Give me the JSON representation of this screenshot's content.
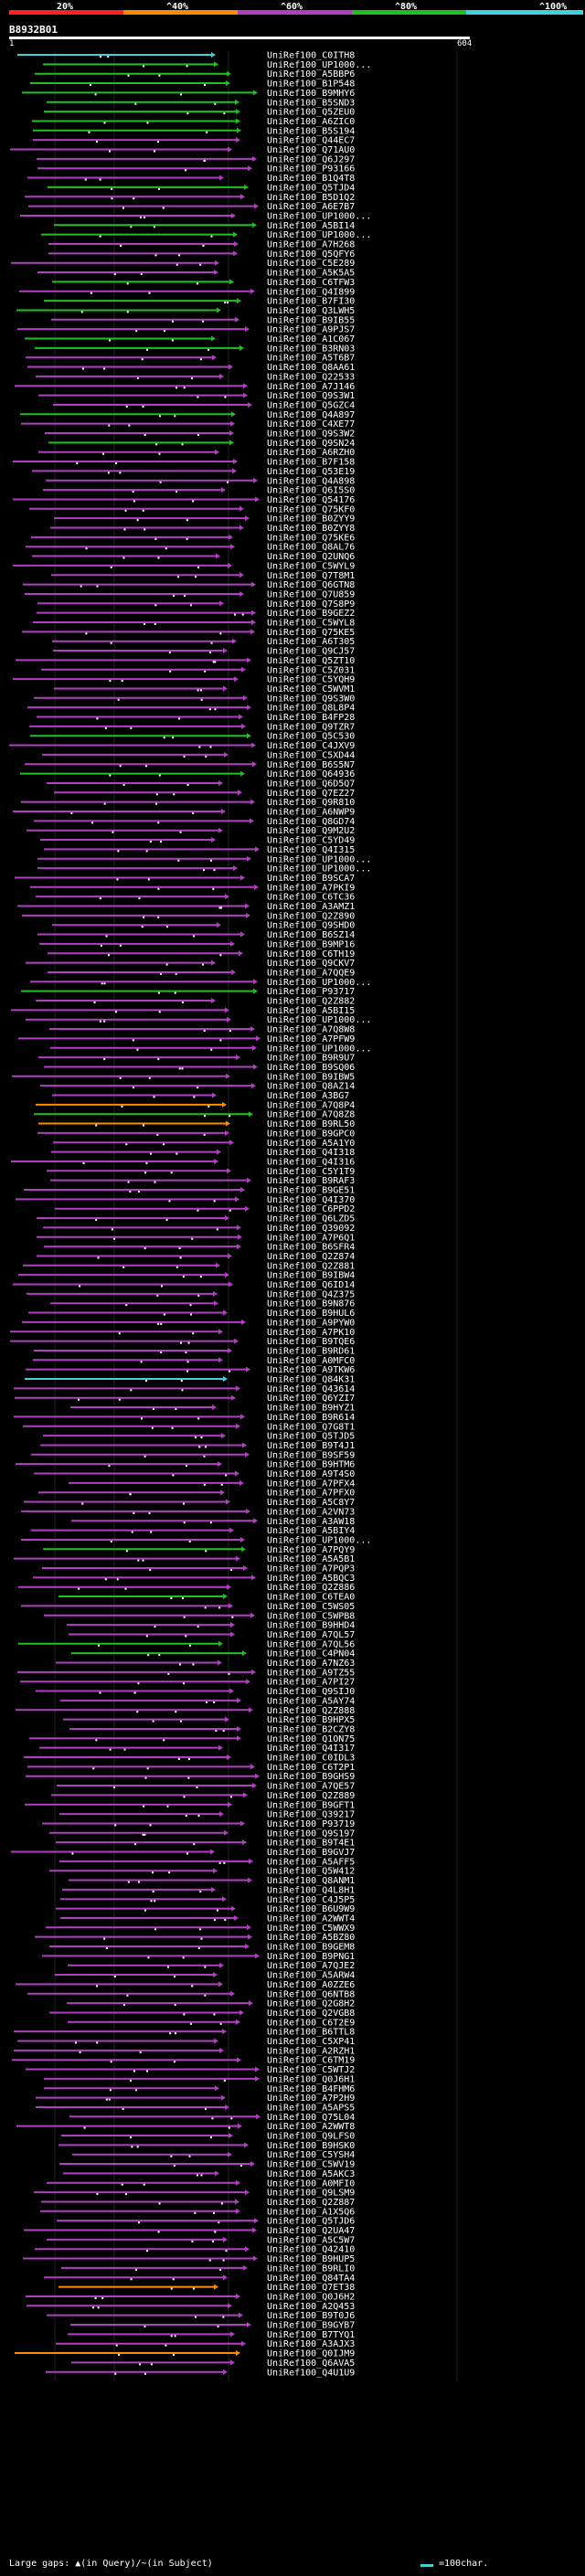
{
  "legend": {
    "segments": [
      {
        "label": "20%",
        "color": "#ff2020"
      },
      {
        "label": "^40%",
        "color": "#ff8c00"
      },
      {
        "label": "^60%",
        "color": "#b040c0"
      },
      {
        "label": "^80%",
        "color": "#20c020"
      },
      {
        "label": "^100%",
        "color": "#40d0e0"
      }
    ]
  },
  "query": {
    "id": "B8932B01",
    "start": "1",
    "end": "604"
  },
  "hits": [
    {
      "label": "UniRef100_C0ITH8",
      "color": "#40d0e0"
    },
    {
      "label": "UniRef100_UP1000...",
      "color": "#20c020"
    },
    {
      "label": "UniRef100_A5BBP6",
      "color": "#20c020"
    },
    {
      "label": "UniRef100_B1P548",
      "color": "#20c020"
    },
    {
      "label": "UniRef100_B9MHY6",
      "color": "#20c020"
    },
    {
      "label": "UniRef100_B5SND3",
      "color": "#20c020"
    },
    {
      "label": "UniRef100_Q5ZEU0",
      "color": "#20c020"
    },
    {
      "label": "UniRef100_A6ZIC0",
      "color": "#20c020"
    },
    {
      "label": "UniRef100_B5S194",
      "color": "#20c020"
    },
    {
      "label": "UniRef100_Q44EC7",
      "color": "#b040c0"
    },
    {
      "label": "UniRef100_Q71AU0",
      "color": "#b040c0"
    },
    {
      "label": "UniRef100_Q6J297",
      "color": "#b040c0"
    },
    {
      "label": "UniRef100_P93166",
      "color": "#b040c0"
    },
    {
      "label": "UniRef100_B1Q4T8",
      "color": "#b040c0"
    },
    {
      "label": "UniRef100_Q5TJD4",
      "color": "#20c020"
    },
    {
      "label": "UniRef100_B5D1Q2",
      "color": "#b040c0"
    },
    {
      "label": "UniRef100_A6E7B7",
      "color": "#b040c0"
    },
    {
      "label": "UniRef100_UP1000...",
      "color": "#b040c0"
    },
    {
      "label": "UniRef100_A5BI14",
      "color": "#20c020"
    },
    {
      "label": "UniRef100_UP1000...",
      "color": "#20c020"
    },
    {
      "label": "UniRef100_A7H268",
      "color": "#b040c0"
    },
    {
      "label": "UniRef100_Q5QFY6",
      "color": "#b040c0"
    },
    {
      "label": "UniRef100_C5E289",
      "color": "#b040c0"
    },
    {
      "label": "UniRef100_A5K5A5",
      "color": "#b040c0"
    },
    {
      "label": "UniRef100_C6TFW3",
      "color": "#20c020"
    },
    {
      "label": "UniRef100_Q4I899",
      "color": "#b040c0"
    },
    {
      "label": "UniRef100_B7FI30",
      "color": "#20c020"
    },
    {
      "label": "UniRef100_Q3LWH5",
      "color": "#20c020"
    },
    {
      "label": "UniRef100_B9IB55",
      "color": "#b040c0"
    },
    {
      "label": "UniRef100_A9PJS7",
      "color": "#b040c0"
    },
    {
      "label": "UniRef100_A1C067",
      "color": "#20c020"
    },
    {
      "label": "UniRef100_B3RN03",
      "color": "#20c020"
    },
    {
      "label": "UniRef100_A5T6B7",
      "color": "#b040c0"
    },
    {
      "label": "UniRef100_Q8AA61",
      "color": "#b040c0"
    },
    {
      "label": "UniRef100_Q22533",
      "color": "#b040c0"
    },
    {
      "label": "UniRef100_A7J146",
      "color": "#b040c0"
    },
    {
      "label": "UniRef100_Q9S3W1",
      "color": "#b040c0"
    },
    {
      "label": "UniRef100_Q5GZC4",
      "color": "#b040c0"
    },
    {
      "label": "UniRef100_Q4A897",
      "color": "#20c020"
    },
    {
      "label": "UniRef100_C4XE77",
      "color": "#b040c0"
    },
    {
      "label": "UniRef100_Q9S3W2",
      "color": "#b040c0"
    },
    {
      "label": "UniRef100_Q9SN24",
      "color": "#20c020"
    },
    {
      "label": "UniRef100_A6RZH0",
      "color": "#b040c0"
    },
    {
      "label": "UniRef100_B7F158",
      "color": "#b040c0"
    },
    {
      "label": "UniRef100_Q53E19",
      "color": "#b040c0"
    },
    {
      "label": "UniRef100_Q4A898",
      "color": "#b040c0"
    },
    {
      "label": "UniRef100_Q6I5S0",
      "color": "#b040c0"
    },
    {
      "label": "UniRef100_Q54176",
      "color": "#b040c0"
    },
    {
      "label": "UniRef100_Q75KF0",
      "color": "#b040c0"
    },
    {
      "label": "UniRef100_B0ZYY9",
      "color": "#b040c0"
    },
    {
      "label": "UniRef100_B0ZYY8",
      "color": "#b040c0"
    },
    {
      "label": "UniRef100_Q75KE6",
      "color": "#b040c0"
    },
    {
      "label": "UniRef100_Q8AL76",
      "color": "#b040c0"
    },
    {
      "label": "UniRef100_Q2UNQ6",
      "color": "#b040c0"
    },
    {
      "label": "UniRef100_C5WYL9",
      "color": "#b040c0"
    },
    {
      "label": "UniRef100_Q7T8M1",
      "color": "#b040c0"
    },
    {
      "label": "UniRef100_Q6GTN8",
      "color": "#b040c0"
    },
    {
      "label": "UniRef100_Q7U859",
      "color": "#b040c0"
    },
    {
      "label": "UniRef100_Q7S8P9",
      "color": "#b040c0"
    },
    {
      "label": "UniRef100_B9GEZ2",
      "color": "#b040c0"
    },
    {
      "label": "UniRef100_C5WYL8",
      "color": "#b040c0"
    },
    {
      "label": "UniRef100_Q75KE5",
      "color": "#b040c0"
    },
    {
      "label": "UniRef100_A6T305",
      "color": "#b040c0"
    },
    {
      "label": "UniRef100_Q9CJ57",
      "color": "#b040c0"
    },
    {
      "label": "UniRef100_Q5ZT10",
      "color": "#b040c0"
    },
    {
      "label": "UniRef100_C5Z031",
      "color": "#b040c0"
    },
    {
      "label": "UniRef100_C5YQH9",
      "color": "#b040c0"
    },
    {
      "label": "UniRef100_C5WVM1",
      "color": "#b040c0"
    },
    {
      "label": "UniRef100_Q9S3W0",
      "color": "#b040c0"
    },
    {
      "label": "UniRef100_Q8L8P4",
      "color": "#b040c0"
    },
    {
      "label": "UniRef100_B4FP28",
      "color": "#b040c0"
    },
    {
      "label": "UniRef100_Q9TZR7",
      "color": "#b040c0"
    },
    {
      "label": "UniRef100_Q5C530",
      "color": "#20c020"
    },
    {
      "label": "UniRef100_C4JXV9",
      "color": "#b040c0"
    },
    {
      "label": "UniRef100_C5XD44",
      "color": "#b040c0"
    },
    {
      "label": "UniRef100_B6S5N7",
      "color": "#b040c0"
    },
    {
      "label": "UniRef100_Q64936",
      "color": "#20c020"
    },
    {
      "label": "UniRef100_Q6D5Q7",
      "color": "#b040c0"
    },
    {
      "label": "UniRef100_Q7EZ27",
      "color": "#b040c0"
    },
    {
      "label": "UniRef100_Q9R810",
      "color": "#b040c0"
    },
    {
      "label": "UniRef100_A6NWP9",
      "color": "#b040c0"
    },
    {
      "label": "UniRef100_Q8GD74",
      "color": "#b040c0"
    },
    {
      "label": "UniRef100_Q9M2U2",
      "color": "#b040c0"
    },
    {
      "label": "UniRef100_C5YD49",
      "color": "#b040c0"
    },
    {
      "label": "UniRef100_Q4I315",
      "color": "#b040c0"
    },
    {
      "label": "UniRef100_UP1000...",
      "color": "#b040c0"
    },
    {
      "label": "UniRef100_UP1000...",
      "color": "#b040c0"
    },
    {
      "label": "UniRef100_B9SCA7",
      "color": "#b040c0"
    },
    {
      "label": "UniRef100_A7PKI9",
      "color": "#b040c0"
    },
    {
      "label": "UniRef100_C6TC36",
      "color": "#b040c0"
    },
    {
      "label": "UniRef100_A3AMZ1",
      "color": "#b040c0"
    },
    {
      "label": "UniRef100_Q2Z890",
      "color": "#b040c0"
    },
    {
      "label": "UniRef100_Q9SHD0",
      "color": "#b040c0"
    },
    {
      "label": "UniRef100_B6SZ14",
      "color": "#b040c0"
    },
    {
      "label": "UniRef100_B9MP16",
      "color": "#b040c0"
    },
    {
      "label": "UniRef100_C6TH19",
      "color": "#b040c0"
    },
    {
      "label": "UniRef100_Q9CKV7",
      "color": "#b040c0"
    },
    {
      "label": "UniRef100_A7QQE9",
      "color": "#b040c0"
    },
    {
      "label": "UniRef100_UP1000...",
      "color": "#b040c0"
    },
    {
      "label": "UniRef100_P93717",
      "color": "#20c020"
    },
    {
      "label": "UniRef100_Q2Z882",
      "color": "#b040c0"
    },
    {
      "label": "UniRef100_A5BI15",
      "color": "#b040c0"
    },
    {
      "label": "UniRef100_UP1000...",
      "color": "#b040c0"
    },
    {
      "label": "UniRef100_A7Q8W8",
      "color": "#b040c0"
    },
    {
      "label": "UniRef100_A7PFW9",
      "color": "#b040c0"
    },
    {
      "label": "UniRef100_UP1000...",
      "color": "#b040c0"
    },
    {
      "label": "UniRef100_B9R9U7",
      "color": "#b040c0"
    },
    {
      "label": "UniRef100_B9SQ06",
      "color": "#b040c0"
    },
    {
      "label": "UniRef100_B9IBW5",
      "color": "#b040c0"
    },
    {
      "label": "UniRef100_Q8AZ14",
      "color": "#b040c0"
    },
    {
      "label": "UniRef100_A3BG7",
      "color": "#b040c0"
    },
    {
      "label": "UniRef100_A7Q8P4",
      "color": "#ff8c00"
    },
    {
      "label": "UniRef100_A7Q8Z8",
      "color": "#20c020"
    },
    {
      "label": "UniRef100_B9RL50",
      "color": "#ff8c00"
    },
    {
      "label": "UniRef100_B9GPC0",
      "color": "#b040c0"
    },
    {
      "label": "UniRef100_A5A1Y0",
      "color": "#b040c0"
    },
    {
      "label": "UniRef100_Q4I318",
      "color": "#b040c0"
    },
    {
      "label": "UniRef100_Q4I316",
      "color": "#b040c0"
    },
    {
      "label": "UniRef100_C5Y1T9",
      "color": "#b040c0"
    },
    {
      "label": "UniRef100_B9RAF3",
      "color": "#b040c0"
    },
    {
      "label": "UniRef100_B9GE51",
      "color": "#b040c0"
    },
    {
      "label": "UniRef100_Q4I370",
      "color": "#b040c0"
    },
    {
      "label": "UniRef100_C6PPD2",
      "color": "#b040c0"
    },
    {
      "label": "UniRef100_Q6LZD5",
      "color": "#b040c0"
    },
    {
      "label": "UniRef100_Q39092",
      "color": "#b040c0"
    },
    {
      "label": "UniRef100_A7P6Q1",
      "color": "#b040c0"
    },
    {
      "label": "UniRef100_B6SFR4",
      "color": "#b040c0"
    },
    {
      "label": "UniRef100_Q2Z874",
      "color": "#b040c0"
    },
    {
      "label": "UniRef100_Q2Z881",
      "color": "#b040c0"
    },
    {
      "label": "UniRef100_B9IBW4",
      "color": "#b040c0"
    },
    {
      "label": "UniRef100_Q6ID14",
      "color": "#b040c0"
    },
    {
      "label": "UniRef100_Q4Z375",
      "color": "#b040c0"
    },
    {
      "label": "UniRef100_B9N876",
      "color": "#b040c0"
    },
    {
      "label": "UniRef100_B9HUL6",
      "color": "#b040c0"
    },
    {
      "label": "UniRef100_A9PYW0",
      "color": "#b040c0"
    },
    {
      "label": "UniRef100_A7PK10",
      "color": "#b040c0"
    },
    {
      "label": "UniRef100_B9TQE6",
      "color": "#b040c0"
    },
    {
      "label": "UniRef100_B9RD61",
      "color": "#b040c0"
    },
    {
      "label": "UniRef100_A0MFC0",
      "color": "#b040c0"
    },
    {
      "label": "UniRef100_A9TKW6",
      "color": "#b040c0"
    },
    {
      "label": "UniRef100_Q84K31",
      "color": "#40d0e0"
    },
    {
      "label": "UniRef100_Q43614",
      "color": "#b040c0"
    },
    {
      "label": "UniRef100_Q6YZI7",
      "color": "#b040c0"
    },
    {
      "label": "UniRef100_B9HYZ1",
      "color": "#b040c0"
    },
    {
      "label": "UniRef100_B9R614",
      "color": "#b040c0"
    },
    {
      "label": "UniRef100_Q7G8T1",
      "color": "#b040c0"
    },
    {
      "label": "UniRef100_Q5TJD5",
      "color": "#b040c0"
    },
    {
      "label": "UniRef100_B9T4J1",
      "color": "#b040c0"
    },
    {
      "label": "UniRef100_B9SF59",
      "color": "#b040c0"
    },
    {
      "label": "UniRef100_B9HTM6",
      "color": "#b040c0"
    },
    {
      "label": "UniRef100_A9T4S0",
      "color": "#b040c0"
    },
    {
      "label": "UniRef100_A7PFX4",
      "color": "#b040c0"
    },
    {
      "label": "UniRef100_A7PFX0",
      "color": "#b040c0"
    },
    {
      "label": "UniRef100_A5C8Y7",
      "color": "#b040c0"
    },
    {
      "label": "UniRef100_A2VN73",
      "color": "#b040c0"
    },
    {
      "label": "UniRef100_A3AW18",
      "color": "#b040c0"
    },
    {
      "label": "UniRef100_A5BIY4",
      "color": "#b040c0"
    },
    {
      "label": "UniRef100_UP1000...",
      "color": "#b040c0"
    },
    {
      "label": "UniRef100_A7PQY9",
      "color": "#20c020"
    },
    {
      "label": "UniRef100_A5A5B1",
      "color": "#b040c0"
    },
    {
      "label": "UniRef100_A7PQP3",
      "color": "#b040c0"
    },
    {
      "label": "UniRef100_A5BQC3",
      "color": "#b040c0"
    },
    {
      "label": "UniRef100_Q2Z886",
      "color": "#b040c0"
    },
    {
      "label": "UniRef100_C6TEA0",
      "color": "#20c020"
    },
    {
      "label": "UniRef100_C5WS05",
      "color": "#b040c0"
    },
    {
      "label": "UniRef100_C5WPB8",
      "color": "#b040c0"
    },
    {
      "label": "UniRef100_B9HHD4",
      "color": "#b040c0"
    },
    {
      "label": "UniRef100_A7QL57",
      "color": "#b040c0"
    },
    {
      "label": "UniRef100_A7QL56",
      "color": "#20c020"
    },
    {
      "label": "UniRef100_C4PN04",
      "color": "#20c020"
    },
    {
      "label": "UniRef100_A7NZ63",
      "color": "#b040c0"
    },
    {
      "label": "UniRef100_A9TZ55",
      "color": "#b040c0"
    },
    {
      "label": "UniRef100_A7PI27",
      "color": "#b040c0"
    },
    {
      "label": "UniRef100_Q9SIJ0",
      "color": "#b040c0"
    },
    {
      "label": "UniRef100_A5AY74",
      "color": "#b040c0"
    },
    {
      "label": "UniRef100_Q2Z888",
      "color": "#b040c0"
    },
    {
      "label": "UniRef100_B9HPX5",
      "color": "#b040c0"
    },
    {
      "label": "UniRef100_B2CZY8",
      "color": "#b040c0"
    },
    {
      "label": "UniRef100_Q1ON75",
      "color": "#b040c0"
    },
    {
      "label": "UniRef100_Q4I317",
      "color": "#b040c0"
    },
    {
      "label": "UniRef100_C0IDL3",
      "color": "#b040c0"
    },
    {
      "label": "UniRef100_C6T2P1",
      "color": "#b040c0"
    },
    {
      "label": "UniRef100_B9GHS9",
      "color": "#b040c0"
    },
    {
      "label": "UniRef100_A7QE57",
      "color": "#b040c0"
    },
    {
      "label": "UniRef100_Q2Z889",
      "color": "#b040c0"
    },
    {
      "label": "UniRef100_B9GFT1",
      "color": "#b040c0"
    },
    {
      "label": "UniRef100_Q39217",
      "color": "#b040c0"
    },
    {
      "label": "UniRef100_P93719",
      "color": "#b040c0"
    },
    {
      "label": "UniRef100_Q9S197",
      "color": "#b040c0"
    },
    {
      "label": "UniRef100_B9T4E1",
      "color": "#b040c0"
    },
    {
      "label": "UniRef100_B9GVJ7",
      "color": "#b040c0"
    },
    {
      "label": "UniRef100_A5AFF5",
      "color": "#b040c0"
    },
    {
      "label": "UniRef100_Q5W412",
      "color": "#b040c0"
    },
    {
      "label": "UniRef100_Q8ANM1",
      "color": "#b040c0"
    },
    {
      "label": "UniRef100_Q4L8H1",
      "color": "#b040c0"
    },
    {
      "label": "UniRef100_C4J5P5",
      "color": "#b040c0"
    },
    {
      "label": "UniRef100_B6U9W9",
      "color": "#b040c0"
    },
    {
      "label": "UniRef100_A2WWT4",
      "color": "#b040c0"
    },
    {
      "label": "UniRef100_C5WWX9",
      "color": "#b040c0"
    },
    {
      "label": "UniRef100_A5BZ80",
      "color": "#b040c0"
    },
    {
      "label": "UniRef100_B9GEM8",
      "color": "#b040c0"
    },
    {
      "label": "UniRef100_B9PNG1",
      "color": "#b040c0"
    },
    {
      "label": "UniRef100_A7QJE2",
      "color": "#b040c0"
    },
    {
      "label": "UniRef100_A5ARW4",
      "color": "#b040c0"
    },
    {
      "label": "UniRef100_A0ZZE6",
      "color": "#b040c0"
    },
    {
      "label": "UniRef100_Q6NTB8",
      "color": "#b040c0"
    },
    {
      "label": "UniRef100_Q2G8H2",
      "color": "#b040c0"
    },
    {
      "label": "UniRef100_Q2VGB8",
      "color": "#b040c0"
    },
    {
      "label": "UniRef100_C6T2E9",
      "color": "#b040c0"
    },
    {
      "label": "UniRef100_B6TTL8",
      "color": "#b040c0"
    },
    {
      "label": "UniRef100_C5XP41",
      "color": "#b040c0"
    },
    {
      "label": "UniRef100_A2RZH1",
      "color": "#b040c0"
    },
    {
      "label": "UniRef100_C6TM19",
      "color": "#b040c0"
    },
    {
      "label": "UniRef100_C5WTJ2",
      "color": "#b040c0"
    },
    {
      "label": "UniRef100_Q0J6H1",
      "color": "#b040c0"
    },
    {
      "label": "UniRef100_B4FHM6",
      "color": "#b040c0"
    },
    {
      "label": "UniRef100_A7P2H9",
      "color": "#b040c0"
    },
    {
      "label": "UniRef100_A5APS5",
      "color": "#b040c0"
    },
    {
      "label": "UniRef100_Q75L04",
      "color": "#b040c0"
    },
    {
      "label": "UniRef100_A2WWT8",
      "color": "#b040c0"
    },
    {
      "label": "UniRef100_Q9LFS0",
      "color": "#b040c0"
    },
    {
      "label": "UniRef100_B9HSK0",
      "color": "#b040c0"
    },
    {
      "label": "UniRef100_C5YSH4",
      "color": "#b040c0"
    },
    {
      "label": "UniRef100_C5WV19",
      "color": "#b040c0"
    },
    {
      "label": "UniRef100_A5AKC3",
      "color": "#b040c0"
    },
    {
      "label": "UniRef100_A0MFI0",
      "color": "#b040c0"
    },
    {
      "label": "UniRef100_Q9LSM9",
      "color": "#b040c0"
    },
    {
      "label": "UniRef100_Q2Z887",
      "color": "#b040c0"
    },
    {
      "label": "UniRef100_A1X5Q6",
      "color": "#b040c0"
    },
    {
      "label": "UniRef100_Q5TJD6",
      "color": "#b040c0"
    },
    {
      "label": "UniRef100_Q2UA47",
      "color": "#b040c0"
    },
    {
      "label": "UniRef100_A5C5W7",
      "color": "#b040c0"
    },
    {
      "label": "UniRef100_Q42410",
      "color": "#b040c0"
    },
    {
      "label": "UniRef100_B9HUP5",
      "color": "#b040c0"
    },
    {
      "label": "UniRef100_B9RLI0",
      "color": "#b040c0"
    },
    {
      "label": "UniRef100_Q84TA4",
      "color": "#b040c0"
    },
    {
      "label": "UniRef100_Q7ET38",
      "color": "#ff8c00"
    },
    {
      "label": "UniRef100_Q0J6H2",
      "color": "#b040c0"
    },
    {
      "label": "UniRef100_A2Q453",
      "color": "#b040c0"
    },
    {
      "label": "UniRef100_B9T0J6",
      "color": "#b040c0"
    },
    {
      "label": "UniRef100_B9GYB7",
      "color": "#b040c0"
    },
    {
      "label": "UniRef100_B7TYQ1",
      "color": "#b040c0"
    },
    {
      "label": "UniRef100_A3AJX3",
      "color": "#b040c0"
    },
    {
      "label": "UniRef100_Q0IJM9",
      "color": "#ff8c00"
    },
    {
      "label": "UniRef100_Q6AVA5",
      "color": "#b040c0"
    },
    {
      "label": "UniRef100_Q4U1U9",
      "color": "#b040c0"
    }
  ],
  "footer": {
    "left": "Large gaps: ▲(in Query)/~(in Subject)",
    "right": "=100char."
  }
}
